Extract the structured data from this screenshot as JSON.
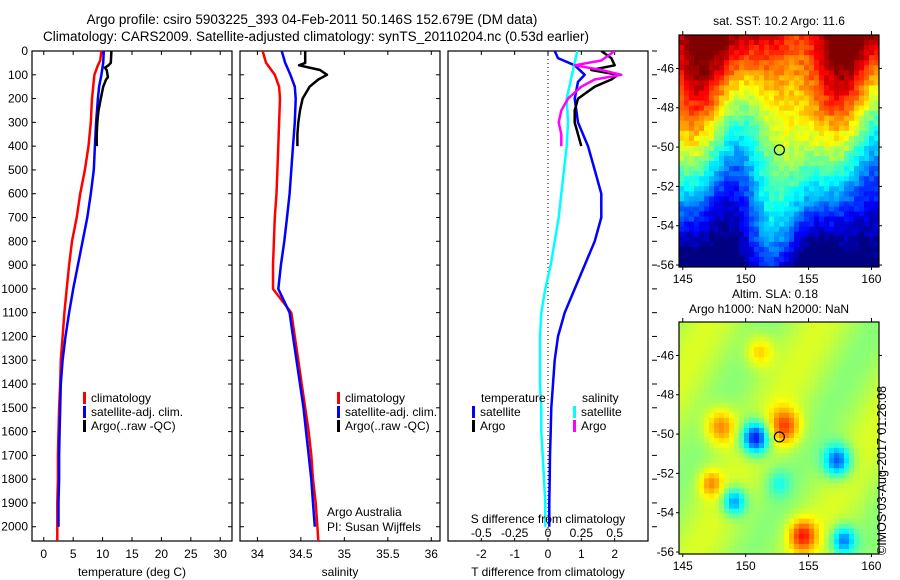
{
  "title": {
    "line1": "Argo profile: csiro 5903225_393 04-Feb-2011 50.146S 152.679E (DM data)",
    "line2": "Climatology: CARS2009. Satellite-adjusted climatology: synTS_20110204.nc (0.53d earlier)"
  },
  "colors": {
    "climatology": "#ff0000",
    "satellite": "#0000ff",
    "argo_temp": "#000000",
    "sal_satellite": "#00ffff",
    "sal_argo": "#ff00ff"
  },
  "chart_data": [
    {
      "type": "line",
      "name": "temperature-profile",
      "xlabel": "temperature (deg C)",
      "ylabel": "",
      "xlim": [
        -2,
        32
      ],
      "ylim": [
        2060,
        0
      ],
      "xticks": [
        0,
        5,
        10,
        15,
        20,
        25,
        30
      ],
      "yticks": [
        0,
        100,
        200,
        300,
        400,
        500,
        600,
        700,
        800,
        900,
        1000,
        1100,
        1200,
        1300,
        1400,
        1500,
        1600,
        1700,
        1800,
        1900,
        2000
      ],
      "legend": {
        "placement": "center-left",
        "entries": [
          "climatology",
          "satellite-adj. clim.",
          "Argo(..raw -QC)"
        ]
      },
      "series": [
        {
          "name": "climatology",
          "color": "#ff0000",
          "depth": [
            0,
            40,
            60,
            100,
            200,
            300,
            400,
            500,
            600,
            700,
            800,
            900,
            1000,
            1100,
            1200,
            1300,
            1400,
            1500,
            1600,
            1700,
            1800,
            1900,
            2000,
            2060
          ],
          "values": [
            9.8,
            9.6,
            9.2,
            8.6,
            8.2,
            8.0,
            7.6,
            7.0,
            6.2,
            5.6,
            4.8,
            4.3,
            3.9,
            3.5,
            3.2,
            2.9,
            2.8,
            2.6,
            2.5,
            2.4,
            2.4,
            2.3,
            2.3,
            2.3
          ]
        },
        {
          "name": "satellite-adj. clim.",
          "color": "#0000ff",
          "depth": [
            0,
            50,
            100,
            150,
            200,
            300,
            400,
            500,
            600,
            700,
            800,
            900,
            1000,
            1100,
            1200,
            1300,
            1400,
            1500,
            1600,
            1700,
            1800,
            1900,
            2000
          ],
          "values": [
            10.2,
            10.1,
            9.8,
            9.4,
            9.2,
            8.9,
            8.7,
            8.5,
            8.0,
            7.4,
            6.6,
            5.8,
            5.0,
            4.3,
            3.7,
            3.2,
            2.9,
            2.8,
            2.7,
            2.6,
            2.6,
            2.5,
            2.5
          ]
        },
        {
          "name": "Argo(..raw -QC)",
          "color": "#000000",
          "depth": [
            0,
            50,
            60,
            70,
            80,
            110,
            120,
            150,
            200,
            250,
            300,
            350,
            400
          ],
          "values": [
            11.5,
            11.4,
            11.0,
            10.4,
            10.7,
            10.9,
            10.6,
            10.1,
            9.7,
            9.3,
            9.1,
            9.0,
            9.0
          ]
        }
      ]
    },
    {
      "type": "line",
      "name": "salinity-profile",
      "xlabel": "salinity",
      "xlim": [
        33.8,
        36.1
      ],
      "ylim": [
        2060,
        0
      ],
      "xticks": [
        34,
        34.5,
        35,
        35.5,
        36
      ],
      "legend": {
        "placement": "center-right",
        "entries": [
          "climatology",
          "satellite-adj. clim.",
          "Argo(..raw -QC)"
        ]
      },
      "annotation": [
        "Argo Australia",
        "PI: Susan Wijffels"
      ],
      "series": [
        {
          "name": "climatology",
          "color": "#ff0000",
          "depth": [
            0,
            50,
            100,
            150,
            200,
            300,
            400,
            500,
            600,
            700,
            800,
            900,
            1000,
            1100,
            1200,
            1300,
            1400,
            1500,
            1600,
            1700,
            1800,
            1900,
            2000,
            2060
          ],
          "values": [
            34.06,
            34.1,
            34.2,
            34.25,
            34.26,
            34.25,
            34.24,
            34.23,
            34.22,
            34.2,
            34.19,
            34.18,
            34.18,
            34.39,
            34.43,
            34.47,
            34.51,
            34.55,
            34.59,
            34.62,
            34.64,
            34.67,
            34.69,
            34.7
          ]
        },
        {
          "name": "satellite-adj. clim.",
          "color": "#0000ff",
          "depth": [
            0,
            50,
            100,
            150,
            200,
            300,
            400,
            500,
            600,
            700,
            800,
            900,
            1000,
            1100,
            1200,
            1300,
            1400,
            1500,
            1600,
            1700,
            1800,
            1900,
            2000
          ],
          "values": [
            34.28,
            34.32,
            34.38,
            34.43,
            34.44,
            34.43,
            34.41,
            34.39,
            34.37,
            34.34,
            34.31,
            34.27,
            34.24,
            34.37,
            34.41,
            34.45,
            34.49,
            34.53,
            34.56,
            34.59,
            34.62,
            34.64,
            34.66
          ]
        },
        {
          "name": "Argo(..raw -QC)",
          "color": "#000000",
          "depth": [
            0,
            50,
            60,
            80,
            100,
            120,
            150,
            200,
            250,
            300,
            350,
            400
          ],
          "values": [
            34.55,
            34.55,
            34.48,
            34.72,
            34.8,
            34.7,
            34.6,
            34.52,
            34.49,
            34.47,
            34.46,
            34.46
          ]
        }
      ]
    },
    {
      "type": "line",
      "name": "difference-profile",
      "xlabel": "T difference from climatology",
      "xlabel2": "S difference from climatology",
      "xlim": [
        -3,
        3
      ],
      "xlim_salinity": [
        -0.75,
        0.75
      ],
      "ylim": [
        2060,
        0
      ],
      "xticks": [
        -2,
        -1,
        0,
        1,
        2
      ],
      "xticks_salinity": [
        "-0.5",
        "-0.25",
        "0",
        "0.25",
        "0.5"
      ],
      "legend": {
        "placement": "bottom-center",
        "temperature": {
          "heading": "temperature",
          "entries": [
            "satellite",
            "Argo"
          ]
        },
        "salinity": {
          "heading": "salinity",
          "entries": [
            "satellite",
            "Argo"
          ]
        }
      },
      "series": [
        {
          "name": "temperature satellite",
          "color": "#0000ff",
          "units": "T",
          "depth": [
            0,
            30,
            60,
            100,
            130,
            200,
            300,
            400,
            500,
            600,
            700,
            800,
            900,
            1000,
            1100,
            1200,
            1300,
            1400,
            1500,
            1600,
            1700,
            1800,
            1900,
            2000
          ],
          "values": [
            0.2,
            0.3,
            0.8,
            1.1,
            0.9,
            0.8,
            0.9,
            1.2,
            1.4,
            1.6,
            1.6,
            1.4,
            1.1,
            0.8,
            0.5,
            0.3,
            0.2,
            0.15,
            0.1,
            0.08,
            0.06,
            0.05,
            0.04,
            0.04
          ]
        },
        {
          "name": "temperature Argo",
          "color": "#000000",
          "units": "T",
          "depth": [
            0,
            30,
            60,
            80,
            100,
            120,
            150,
            200,
            250,
            300,
            350,
            400
          ],
          "values": [
            1.6,
            1.9,
            2.0,
            1.3,
            2.1,
            1.9,
            1.4,
            0.9,
            0.8,
            0.8,
            0.9,
            1.0
          ]
        },
        {
          "name": "salinity satellite",
          "color": "#00ffff",
          "units": "S",
          "depth": [
            0,
            100,
            200,
            300,
            400,
            500,
            600,
            700,
            800,
            900,
            1000,
            1100,
            1200,
            1300,
            1400,
            1500,
            1600,
            1700,
            1800,
            1900,
            2000
          ],
          "values": [
            0.22,
            0.18,
            0.14,
            0.15,
            0.14,
            0.12,
            0.1,
            0.08,
            0.05,
            0.02,
            -0.02,
            -0.05,
            -0.06,
            -0.06,
            -0.06,
            -0.05,
            -0.05,
            -0.04,
            -0.03,
            -0.02,
            -0.02
          ]
        },
        {
          "name": "salinity Argo",
          "color": "#ff00ff",
          "units": "S",
          "depth": [
            0,
            40,
            60,
            80,
            100,
            120,
            150,
            200,
            250,
            300,
            350,
            400
          ],
          "values": [
            0.5,
            0.4,
            0.2,
            0.4,
            0.55,
            0.35,
            0.25,
            0.15,
            0.1,
            0.08,
            0.1,
            0.1
          ]
        }
      ]
    },
    {
      "type": "heatmap",
      "name": "sst-map",
      "title": "sat. SST: 10.2 Argo: 11.6",
      "xlim": [
        144.7,
        160.6
      ],
      "ylim": [
        -56.1,
        -44.3
      ],
      "xticks": [
        145,
        150,
        155,
        160
      ],
      "yticks": [
        -46,
        -48,
        -50,
        -52,
        -54,
        -56
      ],
      "marker": {
        "lon": 152.679,
        "lat": -50.146
      }
    },
    {
      "type": "heatmap",
      "name": "sla-map",
      "title": "Altim. SLA: 0.18",
      "subtitle": "Argo h1000: NaN h2000: NaN",
      "xlim": [
        144.7,
        160.6
      ],
      "ylim": [
        -56.1,
        -44.3
      ],
      "xticks": [
        145,
        150,
        155,
        160
      ],
      "yticks": [
        -46,
        -48,
        -50,
        -52,
        -54,
        -56
      ],
      "marker": {
        "lon": 152.679,
        "lat": -50.146
      }
    }
  ],
  "legend_labels": {
    "climatology": "climatology",
    "satellite": "satellite-adj. clim.",
    "argo": "Argo(..raw -QC)",
    "diff_temperature": "temperature",
    "diff_salinity": "salinity",
    "diff_satellite": "satellite",
    "diff_argo": "Argo"
  },
  "annotation": {
    "line1": "Argo Australia",
    "line2": "PI: Susan Wijffels"
  },
  "stamp": "©IMOS 03-Aug-2017 01:26:08"
}
